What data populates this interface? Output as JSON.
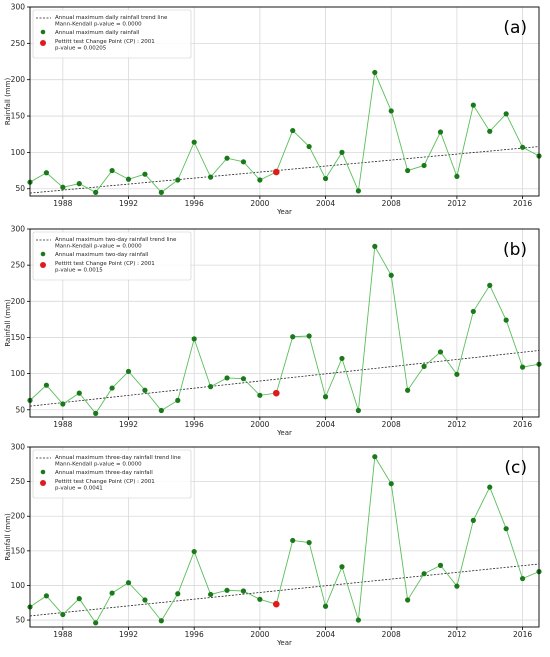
{
  "chart_data": [
    {
      "type": "line",
      "panel_label": "(a)",
      "xlabel": "Year",
      "ylabel": "Rainfall (mm)",
      "xlim": [
        1986,
        2017
      ],
      "ylim": [
        40,
        300
      ],
      "xticks": [
        1988,
        1992,
        1996,
        2000,
        2004,
        2008,
        2012,
        2016
      ],
      "yticks": [
        50,
        100,
        150,
        200,
        250,
        300
      ],
      "grid": true,
      "legend": {
        "position": "top-left",
        "entries": [
          "Annual maximum daily rainfall trend line\nMann-Kendall p-value = 0.0000",
          "Annual maximum daily rainfall",
          "Pettitt test Change Point (CP) : 2001\np-value = 0.00205"
        ]
      },
      "x": [
        1986,
        1987,
        1988,
        1989,
        1990,
        1991,
        1992,
        1993,
        1994,
        1995,
        1996,
        1997,
        1998,
        1999,
        2000,
        2001,
        2002,
        2003,
        2004,
        2005,
        2006,
        2007,
        2008,
        2009,
        2010,
        2011,
        2012,
        2013,
        2014,
        2015,
        2016,
        2017
      ],
      "series": [
        {
          "values": [
            59,
            72,
            52,
            57,
            45,
            75,
            63,
            70,
            45,
            62,
            114,
            66,
            92,
            87,
            62,
            73,
            130,
            108,
            64,
            100,
            47,
            210,
            157,
            75,
            82,
            128,
            67,
            165,
            129,
            153,
            107,
            95
          ],
          "color": "#5bbf5b",
          "marker_color": "#1a7a1a"
        }
      ],
      "change_point": {
        "x": 2001,
        "y": 73,
        "color": "#e01b1b"
      },
      "trend": {
        "start": [
          1986,
          44
        ],
        "end": [
          2017,
          108
        ]
      }
    },
    {
      "type": "line",
      "panel_label": "(b)",
      "xlabel": "Year",
      "ylabel": "Rainfall (mm)",
      "xlim": [
        1986,
        2017
      ],
      "ylim": [
        40,
        300
      ],
      "xticks": [
        1988,
        1992,
        1996,
        2000,
        2004,
        2008,
        2012,
        2016
      ],
      "yticks": [
        50,
        100,
        150,
        200,
        250,
        300
      ],
      "grid": true,
      "legend": {
        "position": "top-left",
        "entries": [
          "Annual maximum two-day rainfall trend line\nMann-Kendall p-value = 0.0000",
          "Annual maximum two-day rainfall",
          "Pettitt test Change Point (CP) : 2001\np-value = 0.0015"
        ]
      },
      "x": [
        1986,
        1987,
        1988,
        1989,
        1990,
        1991,
        1992,
        1993,
        1994,
        1995,
        1996,
        1997,
        1998,
        1999,
        2000,
        2001,
        2002,
        2003,
        2004,
        2005,
        2006,
        2007,
        2008,
        2009,
        2010,
        2011,
        2012,
        2013,
        2014,
        2015,
        2016,
        2017
      ],
      "series": [
        {
          "values": [
            63,
            84,
            58,
            73,
            45,
            80,
            103,
            77,
            49,
            63,
            148,
            82,
            94,
            93,
            70,
            73,
            151,
            152,
            68,
            121,
            49,
            276,
            236,
            77,
            110,
            130,
            99,
            186,
            222,
            174,
            109,
            113
          ],
          "color": "#5bbf5b",
          "marker_color": "#1a7a1a"
        }
      ],
      "change_point": {
        "x": 2001,
        "y": 73,
        "color": "#e01b1b"
      },
      "trend": {
        "start": [
          1986,
          55
        ],
        "end": [
          2017,
          132
        ]
      }
    },
    {
      "type": "line",
      "panel_label": "(c)",
      "xlabel": "Year",
      "ylabel": "Rainfall (mm)",
      "xlim": [
        1986,
        2017
      ],
      "ylim": [
        40,
        300
      ],
      "xticks": [
        1988,
        1992,
        1996,
        2000,
        2004,
        2008,
        2012,
        2016
      ],
      "yticks": [
        50,
        100,
        150,
        200,
        250,
        300
      ],
      "grid": true,
      "legend": {
        "position": "top-left",
        "entries": [
          "Annual maximum three-day rainfall trend line\nMann-Kendall p-value = 0.0000",
          "Annual maximum three-day rainfall",
          "Pettitt test Change Point (CP) : 2001\np-value = 0.0041"
        ]
      },
      "x": [
        1986,
        1987,
        1988,
        1989,
        1990,
        1991,
        1992,
        1993,
        1994,
        1995,
        1996,
        1997,
        1998,
        1999,
        2000,
        2001,
        2002,
        2003,
        2004,
        2005,
        2006,
        2007,
        2008,
        2009,
        2010,
        2011,
        2012,
        2013,
        2014,
        2015,
        2016,
        2017
      ],
      "series": [
        {
          "values": [
            69,
            85,
            58,
            81,
            46,
            89,
            104,
            79,
            49,
            88,
            149,
            87,
            93,
            92,
            80,
            73,
            165,
            162,
            70,
            127,
            50,
            286,
            247,
            79,
            117,
            129,
            99,
            194,
            242,
            182,
            110,
            120
          ],
          "color": "#5bbf5b",
          "marker_color": "#1a7a1a"
        }
      ],
      "change_point": {
        "x": 2001,
        "y": 73,
        "color": "#e01b1b"
      },
      "trend": {
        "start": [
          1986,
          56
        ],
        "end": [
          2017,
          131
        ]
      }
    }
  ]
}
